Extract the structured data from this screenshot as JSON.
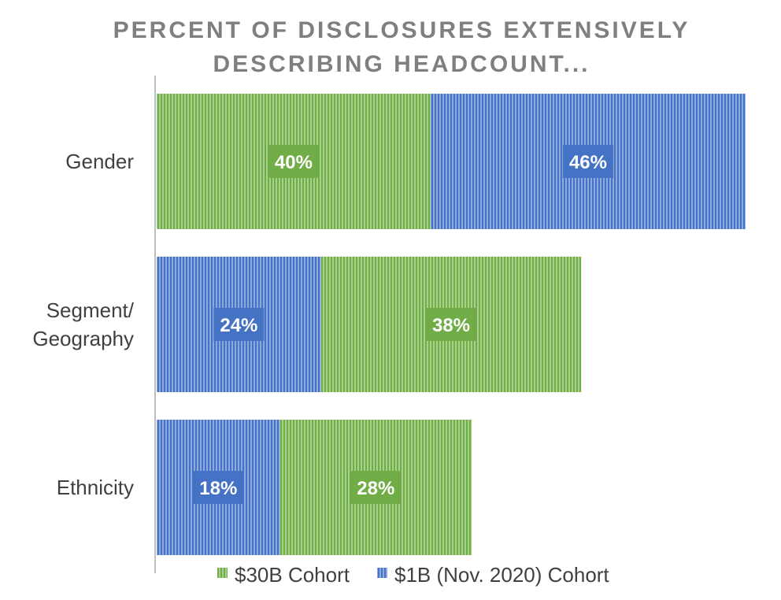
{
  "chart_data": {
    "type": "bar",
    "orientation": "horizontal",
    "stacked": true,
    "title": "PERCENT OF DISCLOSURES EXTENSIVELY DESCRIBING HEADCOUNT...",
    "title_lines": [
      "PERCENT OF DISCLOSURES EXTENSIVELY",
      "DESCRIBING HEADCOUNT..."
    ],
    "categories": [
      "Gender",
      "Segment/ Geography",
      "Ethnicity"
    ],
    "category_lines": [
      [
        "Gender"
      ],
      [
        "Segment/",
        "Geography"
      ],
      [
        "Ethnicity"
      ]
    ],
    "bars": [
      {
        "segments": [
          {
            "series": "$30B Cohort",
            "value": 40,
            "label": "40%"
          },
          {
            "series": "$1B (Nov. 2020) Cohort",
            "value": 46,
            "label": "46%"
          }
        ]
      },
      {
        "segments": [
          {
            "series": "$1B (Nov. 2020) Cohort",
            "value": 24,
            "label": "24%"
          },
          {
            "series": "$30B Cohort",
            "value": 38,
            "label": "38%"
          }
        ]
      },
      {
        "segments": [
          {
            "series": "$1B (Nov. 2020) Cohort",
            "value": 18,
            "label": "18%"
          },
          {
            "series": "$30B Cohort",
            "value": 28,
            "label": "28%"
          }
        ]
      }
    ],
    "series": [
      {
        "name": "$30B Cohort",
        "color": "#70ad47"
      },
      {
        "name": "$1B (Nov. 2020) Cohort",
        "color": "#4472c4"
      }
    ],
    "legend_position": "bottom",
    "grid": false
  }
}
